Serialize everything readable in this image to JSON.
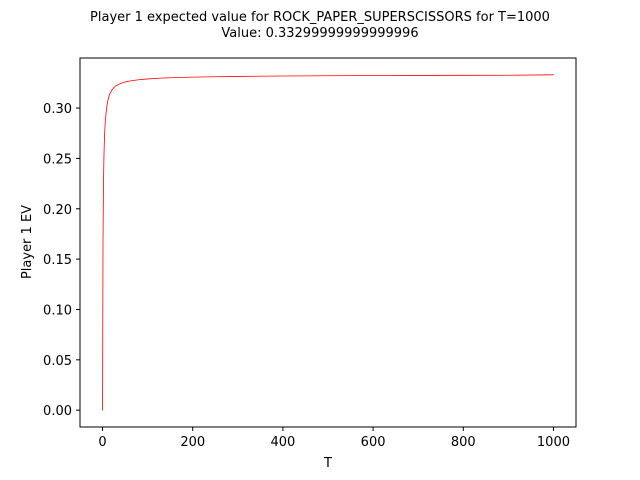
{
  "chart_data": {
    "type": "line",
    "title": "Player 1 expected value for ROCK_PAPER_SUPERSCISSORS for T=1000",
    "subtitle": "Value: 0.33299999999999996",
    "xlabel": "T",
    "ylabel": "Player 1 EV",
    "xlim": [
      -50,
      1050
    ],
    "ylim": [
      -0.0167,
      0.3497
    ],
    "xticks": [
      0,
      200,
      400,
      600,
      800,
      1000
    ],
    "xtick_labels": [
      "0",
      "200",
      "400",
      "600",
      "800",
      "1000"
    ],
    "yticks": [
      0.0,
      0.05,
      0.1,
      0.15,
      0.2,
      0.25,
      0.3
    ],
    "ytick_labels": [
      "0.00",
      "0.05",
      "0.10",
      "0.15",
      "0.20",
      "0.25",
      "0.30"
    ],
    "grid": false,
    "series": [
      {
        "color": "#ff0000",
        "x": [
          0,
          1,
          2,
          3,
          4,
          5,
          6,
          8,
          10,
          12,
          15,
          20,
          25,
          30,
          40,
          50,
          60,
          80,
          100,
          130,
          160,
          200,
          250,
          300,
          400,
          500,
          600,
          700,
          800,
          900,
          1000
        ],
        "y": [
          0.0,
          0.167,
          0.222,
          0.25,
          0.267,
          0.278,
          0.286,
          0.296,
          0.303,
          0.308,
          0.313,
          0.3175,
          0.3203,
          0.3222,
          0.3244,
          0.3259,
          0.3269,
          0.3281,
          0.3289,
          0.3297,
          0.3302,
          0.3307,
          0.3311,
          0.3314,
          0.3318,
          0.3321,
          0.3323,
          0.3324,
          0.3325,
          0.3326,
          0.333
        ]
      }
    ]
  }
}
